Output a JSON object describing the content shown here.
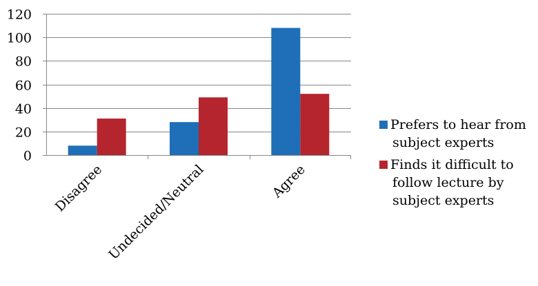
{
  "chart_data": {
    "type": "bar",
    "title": "",
    "xlabel": "",
    "ylabel": "",
    "categories": [
      "Disagree",
      "Undecided/Neutral",
      "Agree"
    ],
    "series": [
      {
        "name": "Prefers to hear from subject experts",
        "legend_lines": [
          "Prefers to hear from",
          "subject experts"
        ],
        "color": "#1F6FB8",
        "values": [
          8,
          28,
          108
        ]
      },
      {
        "name": "Finds it difficult to follow lecture by subject experts",
        "legend_lines": [
          "Finds it difficult to",
          "follow lecture by",
          "subject experts"
        ],
        "color": "#B5252D",
        "values": [
          31,
          49,
          52
        ]
      }
    ],
    "ylim": [
      0,
      120
    ],
    "yticks": [
      0,
      20,
      40,
      60,
      80,
      100,
      120
    ],
    "grid": true,
    "legend_position": "right"
  }
}
